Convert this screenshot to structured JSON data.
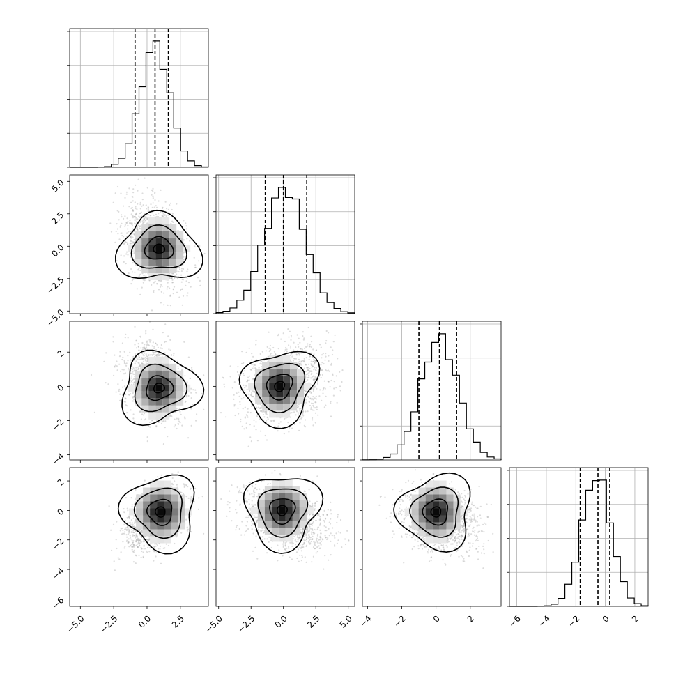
{
  "chart_data": {
    "type": "corner",
    "parameters": 4,
    "grid_lines": true,
    "histogram_quantiles": [
      0.16,
      0.5,
      0.84
    ],
    "params": [
      {
        "range": [
          -5.8,
          4.6
        ],
        "ticks": [
          -5.0,
          -2.5,
          0.0,
          2.5
        ],
        "tick_labels": [
          "−5.0",
          "−2.5",
          "0.0",
          "2.5"
        ],
        "mean": 0.6,
        "sd": 1.1,
        "quantile_values": [
          -0.9,
          0.6,
          1.6
        ],
        "hist_max": 3.9
      },
      {
        "range": [
          -5.2,
          5.5
        ],
        "ticks": [
          -5.0,
          -2.5,
          0.0,
          2.5,
          5.0
        ],
        "tick_labels": [
          "−5.0",
          "−2.5",
          "0.0",
          "2.5",
          "5.0"
        ],
        "mean": 0.1,
        "sd": 1.6,
        "quantile_values": [
          -1.4,
          0.0,
          1.8
        ],
        "hist_max": 4.8
      },
      {
        "range": [
          -4.3,
          3.8
        ],
        "ticks": [
          -4,
          -2,
          0,
          2
        ],
        "tick_labels": [
          "−4",
          "−2",
          "0",
          "2"
        ],
        "mean": 0.2,
        "sd": 1.1,
        "quantile_values": [
          -1.0,
          0.2,
          1.2
        ],
        "hist_max": 4.3
      },
      {
        "range": [
          -6.5,
          2.9
        ],
        "ticks": [
          -6,
          -4,
          -2,
          0,
          2
        ],
        "tick_labels": [
          "−6",
          "−4",
          "−2",
          "0",
          "2"
        ],
        "mean": -0.6,
        "sd": 1.0,
        "quantile_values": [
          -1.7,
          -0.5,
          0.3
        ],
        "hist_max": 4.7
      }
    ],
    "pairs": [
      {
        "x": 0,
        "y": 1,
        "corr": -0.35,
        "peak": [
          0.9,
          -0.2
        ]
      },
      {
        "x": 0,
        "y": 2,
        "corr": -0.3,
        "peak": [
          0.9,
          -0.1
        ]
      },
      {
        "x": 1,
        "y": 2,
        "corr": 0.2,
        "peak": [
          -0.3,
          0.0
        ]
      },
      {
        "x": 0,
        "y": 3,
        "corr": 0.45,
        "peak": [
          1.0,
          -0.1
        ]
      },
      {
        "x": 1,
        "y": 3,
        "corr": -0.35,
        "peak": [
          -0.1,
          0.0
        ]
      },
      {
        "x": 2,
        "y": 3,
        "corr": -0.2,
        "peak": [
          0.0,
          -0.1
        ]
      }
    ]
  }
}
